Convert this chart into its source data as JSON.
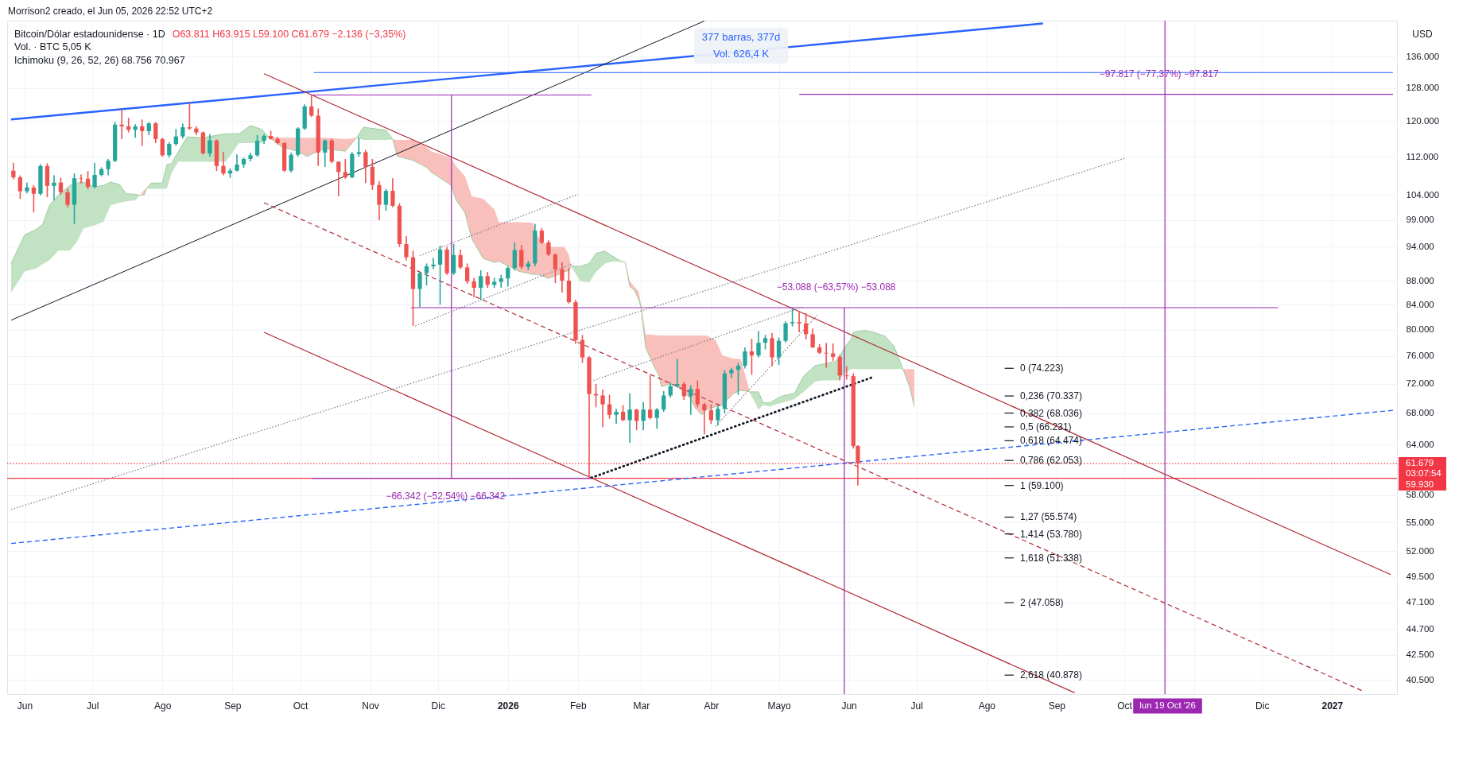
{
  "chart_data": {
    "type": "candlestick",
    "title": "Bitcoin/Dólar estadounidense · 1D",
    "ylabel": "USD",
    "x": [
      "2025-05-27",
      "2025-05-30",
      "2025-06-02",
      "2025-06-05",
      "2025-06-08",
      "2025-06-11",
      "2025-06-14",
      "2025-06-17",
      "2025-06-20",
      "2025-06-23",
      "2025-06-26",
      "2025-06-29",
      "2025-07-02",
      "2025-07-05",
      "2025-07-08",
      "2025-07-11",
      "2025-07-14",
      "2025-07-17",
      "2025-07-20",
      "2025-07-23",
      "2025-07-26",
      "2025-07-29",
      "2025-08-01",
      "2025-08-04",
      "2025-08-07",
      "2025-08-10",
      "2025-08-13",
      "2025-08-16",
      "2025-08-19",
      "2025-08-22",
      "2025-08-25",
      "2025-08-28",
      "2025-08-31",
      "2025-09-03",
      "2025-09-06",
      "2025-09-09",
      "2025-09-12",
      "2025-09-15",
      "2025-09-18",
      "2025-09-21",
      "2025-09-24",
      "2025-09-27",
      "2025-09-30",
      "2025-10-03",
      "2025-10-06",
      "2025-10-09",
      "2025-10-12",
      "2025-10-15",
      "2025-10-18",
      "2025-10-21",
      "2025-10-24",
      "2025-10-27",
      "2025-10-30",
      "2025-11-02",
      "2025-11-05",
      "2025-11-08",
      "2025-11-11",
      "2025-11-14",
      "2025-11-17",
      "2025-11-20",
      "2025-11-23",
      "2025-11-26",
      "2025-11-29",
      "2025-12-02",
      "2025-12-05",
      "2025-12-08",
      "2025-12-11",
      "2025-12-14",
      "2025-12-17",
      "2025-12-20",
      "2025-12-23",
      "2025-12-26",
      "2025-12-29",
      "2026-01-01",
      "2026-01-04",
      "2026-01-07",
      "2026-01-10",
      "2026-01-13",
      "2026-01-16",
      "2026-01-19",
      "2026-01-22",
      "2026-01-25",
      "2026-01-28",
      "2026-01-31",
      "2026-02-03",
      "2026-02-06",
      "2026-02-09",
      "2026-02-12",
      "2026-02-15",
      "2026-02-18",
      "2026-02-21",
      "2026-02-24",
      "2026-02-27",
      "2026-03-02",
      "2026-03-05",
      "2026-03-08",
      "2026-03-11",
      "2026-03-14",
      "2026-03-17",
      "2026-03-20",
      "2026-03-23",
      "2026-03-26",
      "2026-03-29",
      "2026-04-01",
      "2026-04-04",
      "2026-04-07",
      "2026-04-10",
      "2026-04-13",
      "2026-04-16",
      "2026-04-19",
      "2026-04-22",
      "2026-04-25",
      "2026-04-28",
      "2026-05-01",
      "2026-05-04",
      "2026-05-07",
      "2026-05-10",
      "2026-05-13",
      "2026-05-16",
      "2026-05-19",
      "2026-05-22",
      "2026-05-25",
      "2026-05-28",
      "2026-05-31",
      "2026-06-03",
      "2026-06-05"
    ],
    "ohlc": [
      [
        109000,
        110700,
        107200,
        107600
      ],
      [
        107600,
        108000,
        103200,
        104700
      ],
      [
        104700,
        106500,
        104300,
        105500
      ],
      [
        105500,
        106000,
        100500,
        104200
      ],
      [
        104200,
        110400,
        103900,
        110000
      ],
      [
        110000,
        110600,
        103500,
        105800
      ],
      [
        105800,
        108000,
        102900,
        106500
      ],
      [
        106500,
        107500,
        104000,
        104500
      ],
      [
        104500,
        105200,
        101500,
        102000
      ],
      [
        102000,
        108400,
        98300,
        107400
      ],
      [
        107400,
        108200,
        106300,
        107300
      ],
      [
        107300,
        108900,
        105100,
        105600
      ],
      [
        105600,
        110700,
        105300,
        108100
      ],
      [
        108100,
        109700,
        107800,
        109300
      ],
      [
        109300,
        111500,
        108000,
        111100
      ],
      [
        111100,
        119800,
        110800,
        119200
      ],
      [
        119200,
        122900,
        115900,
        118800
      ],
      [
        118800,
        120800,
        117400,
        118000
      ],
      [
        118000,
        119300,
        116200,
        118800
      ],
      [
        118800,
        120400,
        114400,
        117700
      ],
      [
        117700,
        119800,
        116800,
        119500
      ],
      [
        119500,
        119800,
        115000,
        115900
      ],
      [
        115900,
        116200,
        112000,
        112300
      ],
      [
        112300,
        115200,
        111800,
        114800
      ],
      [
        114800,
        118200,
        114400,
        116500
      ],
      [
        116500,
        119500,
        116000,
        118600
      ],
      [
        118600,
        124300,
        118000,
        118300
      ],
      [
        118300,
        118800,
        116800,
        117400
      ],
      [
        117400,
        117600,
        112500,
        112700
      ],
      [
        112700,
        117000,
        112000,
        115600
      ],
      [
        115600,
        115800,
        108900,
        110000
      ],
      [
        110000,
        113000,
        108000,
        108400
      ],
      [
        108400,
        109500,
        107500,
        109000
      ],
      [
        109000,
        112500,
        108800,
        110300
      ],
      [
        110300,
        111800,
        109600,
        111500
      ],
      [
        111500,
        112900,
        111000,
        112300
      ],
      [
        112300,
        116800,
        112000,
        115500
      ],
      [
        115500,
        117000,
        114800,
        116600
      ],
      [
        116600,
        117800,
        115800,
        115900
      ],
      [
        115900,
        116400,
        114700,
        115000
      ],
      [
        115000,
        115200,
        108700,
        109000
      ],
      [
        109000,
        112900,
        108600,
        112400
      ],
      [
        112400,
        118600,
        112000,
        118300
      ],
      [
        118300,
        124000,
        118000,
        123500
      ],
      [
        123500,
        126270,
        121000,
        121300
      ],
      [
        121300,
        123000,
        110000,
        112900
      ],
      [
        112900,
        115800,
        109800,
        115600
      ],
      [
        115600,
        116000,
        110600,
        110900
      ],
      [
        110900,
        111000,
        103700,
        108700
      ],
      [
        108700,
        111500,
        107300,
        107600
      ],
      [
        107600,
        113000,
        107400,
        112600
      ],
      [
        112600,
        116200,
        112000,
        113000
      ],
      [
        113000,
        113500,
        106400,
        109800
      ],
      [
        109800,
        111500,
        105000,
        106000
      ],
      [
        106000,
        106800,
        99000,
        102000
      ],
      [
        102000,
        105200,
        100800,
        104800
      ],
      [
        104800,
        107400,
        101500,
        101800
      ],
      [
        101800,
        102300,
        94000,
        94500
      ],
      [
        94500,
        96000,
        91500,
        92100
      ],
      [
        92100,
        93300,
        80600,
        86600
      ],
      [
        86600,
        89500,
        83600,
        89300
      ],
      [
        89300,
        91000,
        87200,
        90500
      ],
      [
        90500,
        92000,
        90000,
        90800
      ],
      [
        90800,
        94200,
        84000,
        93500
      ],
      [
        93500,
        94000,
        89000,
        89300
      ],
      [
        89300,
        94500,
        89000,
        92500
      ],
      [
        92500,
        93500,
        90000,
        90300
      ],
      [
        90300,
        91000,
        87500,
        87900
      ],
      [
        87900,
        88500,
        85200,
        86800
      ],
      [
        86800,
        89800,
        84800,
        88800
      ],
      [
        88800,
        89500,
        86800,
        87300
      ],
      [
        87300,
        88500,
        86800,
        87800
      ],
      [
        87800,
        89000,
        86800,
        88400
      ],
      [
        88400,
        90500,
        87000,
        90200
      ],
      [
        90200,
        94800,
        89800,
        93400
      ],
      [
        93400,
        94300,
        90000,
        90400
      ],
      [
        90400,
        91500,
        89800,
        91000
      ],
      [
        91000,
        98300,
        90500,
        97000
      ],
      [
        97000,
        97500,
        94500,
        94800
      ],
      [
        94800,
        95200,
        92300,
        92600
      ],
      [
        92600,
        92800,
        87600,
        90000
      ],
      [
        90000,
        91200,
        86000,
        88000
      ],
      [
        88000,
        90200,
        84200,
        84400
      ],
      [
        84400,
        84800,
        77800,
        78400
      ],
      [
        78400,
        79200,
        75000,
        75800
      ],
      [
        75800,
        76000,
        59930,
        70600
      ],
      [
        70600,
        72000,
        68800,
        70400
      ],
      [
        70400,
        71200,
        66200,
        69200
      ],
      [
        69200,
        70500,
        67300,
        67800
      ],
      [
        67800,
        68600,
        66600,
        68200
      ],
      [
        68200,
        69100,
        67000,
        67100
      ],
      [
        67100,
        70700,
        64200,
        68500
      ],
      [
        68500,
        68600,
        65800,
        67000
      ],
      [
        67000,
        69500,
        65800,
        68500
      ],
      [
        68500,
        73300,
        67200,
        67400
      ],
      [
        67400,
        68700,
        66000,
        68500
      ],
      [
        68500,
        71000,
        68200,
        70400
      ],
      [
        70400,
        72200,
        70100,
        71700
      ],
      [
        71700,
        75600,
        71500,
        72000
      ],
      [
        72000,
        72300,
        69800,
        70300
      ],
      [
        70300,
        71800,
        67800,
        71300
      ],
      [
        71300,
        72500,
        68800,
        69200
      ],
      [
        69200,
        69400,
        65300,
        68400
      ],
      [
        68400,
        69200,
        66600,
        67100
      ],
      [
        67100,
        69000,
        66400,
        68600
      ],
      [
        68600,
        74000,
        68000,
        73500
      ],
      [
        73500,
        74300,
        72800,
        74000
      ],
      [
        74000,
        75000,
        70500,
        74600
      ],
      [
        74600,
        77300,
        74200,
        76700
      ],
      [
        76700,
        78600,
        73300,
        76100
      ],
      [
        76100,
        79800,
        75800,
        78000
      ],
      [
        78000,
        79200,
        77000,
        78700
      ],
      [
        78700,
        79500,
        74500,
        75800
      ],
      [
        75800,
        78800,
        74700,
        78300
      ],
      [
        78300,
        81300,
        78000,
        81000
      ],
      [
        81000,
        83500,
        80500,
        81200
      ],
      [
        81200,
        83000,
        79600,
        81000
      ],
      [
        81000,
        82600,
        78500,
        79300
      ],
      [
        79300,
        80200,
        77200,
        77300
      ],
      [
        77300,
        77800,
        76300,
        76500
      ],
      [
        76500,
        78000,
        74300,
        76400
      ],
      [
        76400,
        77900,
        75300,
        75900
      ],
      [
        75900,
        76200,
        72500,
        73200
      ],
      [
        73200,
        74500,
        72600,
        73100
      ],
      [
        73100,
        73500,
        63500,
        63800
      ],
      [
        63811,
        63915,
        59100,
        61679
      ]
    ],
    "colors": [
      "#ef5350",
      "#ef5350",
      "#26a69a",
      "#ef5350",
      "#26a69a",
      "#ef5350",
      "#26a69a",
      "#ef5350",
      "#ef5350",
      "#26a69a",
      "#ef5350",
      "#ef5350",
      "#26a69a",
      "#26a69a",
      "#26a69a",
      "#26a69a",
      "#ef5350",
      "#ef5350",
      "#26a69a",
      "#ef5350",
      "#26a69a",
      "#ef5350",
      "#ef5350",
      "#26a69a",
      "#26a69a",
      "#26a69a",
      "#ef5350",
      "#ef5350",
      "#ef5350",
      "#26a69a",
      "#ef5350",
      "#ef5350",
      "#26a69a",
      "#26a69a",
      "#26a69a",
      "#26a69a",
      "#26a69a",
      "#26a69a",
      "#ef5350",
      "#ef5350",
      "#ef5350",
      "#26a69a",
      "#26a69a",
      "#26a69a",
      "#ef5350",
      "#ef5350",
      "#26a69a",
      "#ef5350",
      "#ef5350",
      "#ef5350",
      "#26a69a",
      "#26a69a",
      "#ef5350",
      "#ef5350",
      "#ef5350",
      "#26a69a",
      "#ef5350",
      "#ef5350",
      "#ef5350",
      "#ef5350",
      "#26a69a",
      "#26a69a",
      "#26a69a",
      "#26a69a",
      "#ef5350",
      "#26a69a",
      "#ef5350",
      "#ef5350",
      "#ef5350",
      "#26a69a",
      "#ef5350",
      "#26a69a",
      "#26a69a",
      "#26a69a",
      "#26a69a",
      "#ef5350",
      "#26a69a",
      "#26a69a",
      "#ef5350",
      "#ef5350",
      "#ef5350",
      "#ef5350",
      "#ef5350",
      "#ef5350",
      "#ef5350",
      "#ef5350",
      "#ef5350",
      "#ef5350",
      "#ef5350",
      "#26a69a",
      "#ef5350",
      "#26a69a",
      "#ef5350",
      "#26a69a",
      "#ef5350",
      "#26a69a",
      "#26a69a",
      "#26a69a",
      "#26a69a",
      "#ef5350",
      "#26a69a",
      "#ef5350",
      "#ef5350",
      "#ef5350",
      "#26a69a",
      "#26a69a",
      "#26a69a",
      "#26a69a",
      "#26a69a",
      "#ef5350",
      "#26a69a",
      "#26a69a",
      "#ef5350",
      "#26a69a",
      "#26a69a",
      "#26a69a",
      "#ef5350",
      "#ef5350",
      "#ef5350",
      "#ef5350",
      "#ef5350",
      "#ef5350",
      "#ef5350",
      "#ef5350",
      "#ef5350",
      "#ef5350"
    ],
    "series": [
      {
        "type": "line",
        "color": "#9ccc9e",
        "x": [
          "2025-05-26",
          "2025-06-01",
          "2025-06-06",
          "2025-06-09",
          "2025-06-12",
          "2025-06-16",
          "2025-06-21",
          "2025-06-24",
          "2025-06-27",
          "2025-07-02",
          "2025-07-06",
          "2025-07-09",
          "2025-07-13",
          "2025-07-16",
          "2025-07-20",
          "2025-07-22",
          "2025-07-24",
          "2025-07-25",
          "2025-07-27",
          "2025-08-01",
          "2025-08-03",
          "2025-08-05",
          "2025-08-08",
          "2025-08-12",
          "2025-08-19",
          "2025-08-29",
          "2025-09-04",
          "2025-09-09",
          "2025-09-14",
          "2025-09-17",
          "2025-09-23",
          "2025-09-30",
          "2025-10-04",
          "2025-10-12",
          "2025-10-21",
          "2025-10-26",
          "2025-10-29",
          "2025-11-08",
          "2025-11-11",
          "2025-11-13",
          "2025-11-20",
          "2025-11-26",
          "2025-11-28",
          "2025-12-07",
          "2025-12-09",
          "2025-12-13",
          "2025-12-16",
          "2025-12-21",
          "2025-12-26",
          "2025-12-28",
          "2026-01-06",
          "2026-01-12",
          "2026-01-14",
          "2026-01-19",
          "2026-01-26",
          "2026-01-28",
          "2026-01-29",
          "2026-02-02",
          "2026-02-06",
          "2026-02-09",
          "2026-02-13",
          "2026-02-16",
          "2026-02-20",
          "2026-02-22",
          "2026-02-24",
          "2026-02-26",
          "2026-02-28",
          "2026-03-01",
          "2026-03-03",
          "2026-03-06",
          "2026-03-09",
          "2026-03-10",
          "2026-03-14",
          "2026-03-17",
          "2026-03-21",
          "2026-03-23",
          "2026-03-25",
          "2026-03-28",
          "2026-03-30",
          "2026-04-03",
          "2026-04-06",
          "2026-04-11",
          "2026-04-14",
          "2026-04-17",
          "2026-04-18",
          "2026-04-22",
          "2026-04-24",
          "2026-04-27",
          "2026-05-02",
          "2026-05-08",
          "2026-05-12",
          "2026-05-17",
          "2026-05-20",
          "2026-05-26",
          "2026-05-28",
          "2026-05-30",
          "2026-06-02",
          "2026-06-03",
          "2026-06-08",
          "2026-06-12",
          "2026-06-17",
          "2026-06-21",
          "2026-06-25",
          "2026-06-28",
          "2026-06-30"
        ],
        "values": [
          91000,
          96200,
          97200,
          98200,
          101900,
          104000,
          105900,
          106400,
          106600,
          105600,
          105900,
          106600,
          106100,
          104200,
          104100,
          103900,
          104000,
          105300,
          106400,
          106400,
          110300,
          110500,
          113100,
          116400,
          116200,
          117100,
          117100,
          119000,
          118100,
          116400,
          114100,
          113200,
          112100,
          113800,
          113200,
          116200,
          118600,
          117900,
          115800,
          112100,
          111200,
          109700,
          108700,
          105900,
          103000,
          100400,
          95500,
          91900,
          91200,
          91400,
          89600,
          89100,
          89100,
          88400,
          89500,
          89800,
          90500,
          90500,
          91000,
          92800,
          93200,
          92400,
          91400,
          91200,
          87000,
          86400,
          84800,
          83500,
          77300,
          75000,
          73100,
          71600,
          72000,
          71600,
          70600,
          69900,
          68700,
          67800,
          68500,
          68900,
          69100,
          70700,
          71100,
          71000,
          70900,
          70900,
          69400,
          69400,
          70300,
          70700,
          73100,
          74600,
          74800,
          75200,
          75900,
          77300,
          78500,
          79600,
          79900,
          79600,
          79000,
          77500,
          74100,
          71500,
          68900
        ],
        "lower": [
          86000,
          89600,
          90100,
          90900,
          91600,
          93300,
          93300,
          94800,
          97400,
          98000,
          98700,
          101900,
          102400,
          102700,
          102900,
          103900,
          104000,
          105300,
          105200,
          105200,
          105300,
          108400,
          110900,
          110900,
          110900,
          110900,
          115000,
          115000,
          115000,
          116400,
          114100,
          113200,
          112100,
          113800,
          113200,
          116200,
          115700,
          115700,
          115800,
          112100,
          111200,
          109700,
          108700,
          105900,
          103000,
          100400,
          95500,
          91900,
          91200,
          91400,
          89600,
          89100,
          89100,
          88400,
          89500,
          89800,
          90500,
          87900,
          87700,
          89500,
          91000,
          91300,
          91300,
          91200,
          87000,
          86400,
          84800,
          83500,
          77300,
          75000,
          73100,
          71600,
          72000,
          71600,
          70600,
          69900,
          68700,
          67800,
          68500,
          68900,
          69100,
          70700,
          71100,
          71000,
          70900,
          68500,
          69100,
          68900,
          69400,
          69900,
          70900,
          72300,
          72500,
          72500,
          72500,
          73500,
          74100,
          74100,
          74100,
          74100,
          74100,
          74100,
          74100,
          71500,
          68900
        ],
        "upper": [
          91000,
          96200,
          97200,
          98200,
          101900,
          104000,
          105900,
          106400,
          106600,
          105600,
          105900,
          106600,
          106100,
          104200,
          104100,
          103900,
          105000,
          105300,
          106400,
          106400,
          110300,
          110500,
          113100,
          116400,
          116200,
          117100,
          117100,
          119000,
          118100,
          116400,
          116200,
          116200,
          116200,
          116200,
          115900,
          116200,
          118600,
          117900,
          115800,
          115700,
          115700,
          114100,
          113200,
          111700,
          110000,
          107800,
          103700,
          103200,
          101100,
          98600,
          98600,
          98500,
          96000,
          94000,
          94000,
          92600,
          90500,
          90500,
          91000,
          92800,
          93200,
          92400,
          91400,
          91200,
          87900,
          87000,
          86100,
          84000,
          79300,
          79200,
          79100,
          79100,
          79100,
          79100,
          79100,
          79100,
          79100,
          79100,
          79100,
          78400,
          76100,
          75600,
          75600,
          72300,
          70900,
          70900,
          69400,
          69400,
          70300,
          70700,
          73100,
          74600,
          74800,
          75200,
          75900,
          77300,
          78500,
          79600,
          79900,
          79600,
          79000,
          77500,
          74100,
          74100,
          74100
        ],
        "colors": [
          "#c2e3c3",
          "#c2e3c3",
          "#c2e3c3",
          "#c2e3c3",
          "#c2e3c3",
          "#c2e3c3",
          "#c2e3c3",
          "#c2e3c3",
          "#c2e3c3",
          "#c2e3c3",
          "#c2e3c3",
          "#c2e3c3",
          "#c2e3c3",
          "#c2e3c3",
          "#c2e3c3",
          "#f9c0bb",
          "#f9c0bb",
          "#c2e3c3",
          "#c2e3c3",
          "#c2e3c3",
          "#c2e3c3",
          "#c2e3c3",
          "#c2e3c3",
          "#c2e3c3",
          "#c2e3c3",
          "#c2e3c3",
          "#c2e3c3",
          "#c2e3c3",
          "#c2e3c3",
          "#f9c0bb",
          "#f9c0bb",
          "#f9c0bb",
          "#f9c0bb",
          "#f9c0bb",
          "#f9c0bb",
          "#c2e3c3",
          "#c2e3c3",
          "#c2e3c3",
          "#f9c0bb",
          "#f9c0bb",
          "#f9c0bb",
          "#f9c0bb",
          "#f9c0bb",
          "#f9c0bb",
          "#f9c0bb",
          "#f9c0bb",
          "#f9c0bb",
          "#f9c0bb",
          "#f9c0bb",
          "#f9c0bb",
          "#f9c0bb",
          "#f9c0bb",
          "#f9c0bb",
          "#f9c0bb",
          "#f9c0bb",
          "#f9c0bb",
          "#c2e3c3",
          "#c2e3c3",
          "#c2e3c3",
          "#c2e3c3",
          "#c2e3c3",
          "#c2e3c3",
          "#c2e3c3",
          "#f9c0bb",
          "#f9c0bb",
          "#f9c0bb",
          "#f9c0bb",
          "#f9c0bb",
          "#f9c0bb",
          "#f9c0bb",
          "#f9c0bb",
          "#f9c0bb",
          "#f9c0bb",
          "#f9c0bb",
          "#f9c0bb",
          "#f9c0bb",
          "#f9c0bb",
          "#f9c0bb",
          "#f9c0bb",
          "#f9c0bb",
          "#f9c0bb",
          "#f9c0bb",
          "#f9c0bb",
          "#f9c0bb",
          "#c2e3c3",
          "#c2e3c3",
          "#c2e3c3",
          "#c2e3c3",
          "#c2e3c3",
          "#c2e3c3",
          "#c2e3c3",
          "#c2e3c3",
          "#c2e3c3",
          "#c2e3c3",
          "#c2e3c3",
          "#c2e3c3",
          "#c2e3c3",
          "#c2e3c3",
          "#c2e3c3",
          "#c2e3c3",
          "#c2e3c3",
          "#c2e3c3",
          "#f9c0bb",
          "#f9c0bb",
          "#f9c0bb"
        ]
      },
      {
        "type": "line",
        "color": "#2962ff",
        "x": [
          "2025-05-26",
          "2026-08-26"
        ],
        "values": [
          120400,
          145100
        ]
      },
      {
        "type": "line",
        "color": "#131722",
        "x": [
          "2025-05-26",
          "2026-03-29"
        ],
        "values": [
          81500,
          145800
        ]
      },
      {
        "type": "line",
        "color": "#b22833",
        "x": [
          "2025-09-15",
          "2027-01-27"
        ],
        "values": [
          131600,
          49700
        ]
      },
      {
        "type": "line",
        "color": "#b22833",
        "line_style": "dashed",
        "x": [
          "2025-09-15",
          "2027-01-15"
        ],
        "values": [
          102400,
          39600
        ]
      },
      {
        "type": "line",
        "color": "#b22833",
        "x": [
          "2025-09-15",
          "2026-09-09"
        ],
        "values": [
          79600,
          39500
        ]
      },
      {
        "type": "line",
        "color": "#2962ff",
        "line_style": "dashed",
        "x": [
          "2025-05-26",
          "2027-01-28"
        ],
        "values": [
          52800,
          68400
        ]
      },
      {
        "type": "line",
        "color": "#787b86",
        "line_style": "dotted",
        "x": [
          "2025-05-26",
          "2026-10-01"
        ],
        "values": [
          56400,
          111600
        ]
      },
      {
        "type": "line",
        "color": "#787b86",
        "line_style": "dotted",
        "x": [
          "2025-11-23",
          "2026-02-01"
        ],
        "values": [
          92400,
          104100
        ]
      },
      {
        "type": "line",
        "color": "#787b86",
        "line_style": "dotted",
        "x": [
          "2025-11-21",
          "2026-01-30"
        ],
        "values": [
          80600,
          91000
        ]
      },
      {
        "type": "line",
        "color": "#787b86",
        "line_style": "dotted",
        "x": [
          "2026-02-08",
          "2026-05-12"
        ],
        "values": [
          72500,
          83700
        ]
      },
      {
        "type": "line",
        "color": "#787b86",
        "line_style": "dotted",
        "x": [
          "2026-04-03",
          "2026-05-18"
        ],
        "values": [
          66300,
          82300
        ]
      },
      {
        "type": "line",
        "color": "#131722",
        "line_style": "dotted",
        "x": [
          "2026-02-07",
          "2026-06-12"
        ],
        "values": [
          60000,
          73000
        ]
      },
      {
        "type": "line",
        "color": "#2962ff",
        "x": [
          "2025-10-07",
          "2027-01-28"
        ],
        "values": [
          131900,
          131900
        ]
      },
      {
        "type": "line",
        "color": "#9c27b0",
        "x": [
          "2025-10-06",
          "2026-02-07"
        ],
        "values": [
          126270,
          126270
        ]
      },
      {
        "type": "line",
        "color": "#9c27b0",
        "x": [
          "2025-10-06",
          "2026-02-07"
        ],
        "values": [
          59930,
          59930
        ]
      },
      {
        "type": "line",
        "color": "#9c27b0",
        "x": [
          "2025-12-07",
          "2025-12-07"
        ],
        "values": [
          126270,
          59930
        ]
      },
      {
        "type": "line",
        "color": "#9c27b0",
        "x": [
          "2025-11-19",
          "2026-12-08"
        ],
        "values": [
          83511,
          83511
        ]
      },
      {
        "type": "line",
        "color": "#9c27b0",
        "x": [
          "2026-05-30",
          "2026-05-30"
        ],
        "values": [
          83511,
          39400
        ]
      },
      {
        "type": "line",
        "color": "#9c27b0",
        "x": [
          "2026-05-10",
          "2027-01-28"
        ],
        "values": [
          126430,
          126430
        ]
      },
      {
        "type": "line",
        "color": "#131722",
        "x": [
          "2026-08-09",
          "2026-08-13"
        ],
        "values": [
          74223,
          74223
        ]
      },
      {
        "type": "line",
        "color": "#131722",
        "x": [
          "2026-08-09",
          "2026-08-13"
        ],
        "values": [
          70337,
          70337
        ]
      },
      {
        "type": "line",
        "color": "#131722",
        "x": [
          "2026-08-09",
          "2026-08-13"
        ],
        "values": [
          68036,
          68036
        ]
      },
      {
        "type": "line",
        "color": "#131722",
        "x": [
          "2026-08-09",
          "2026-08-13"
        ],
        "values": [
          66231,
          66231
        ]
      },
      {
        "type": "line",
        "color": "#131722",
        "x": [
          "2026-08-09",
          "2026-08-13"
        ],
        "values": [
          64474,
          64474
        ]
      },
      {
        "type": "line",
        "color": "#131722",
        "x": [
          "2026-08-09",
          "2026-08-13"
        ],
        "values": [
          62053,
          62053
        ]
      },
      {
        "type": "line",
        "color": "#131722",
        "x": [
          "2026-08-09",
          "2026-08-13"
        ],
        "values": [
          59100,
          59100
        ]
      },
      {
        "type": "line",
        "color": "#131722",
        "x": [
          "2026-08-09",
          "2026-08-13"
        ],
        "values": [
          55574,
          55574
        ]
      },
      {
        "type": "line",
        "color": "#131722",
        "x": [
          "2026-08-09",
          "2026-08-13"
        ],
        "values": [
          53780,
          53780
        ]
      },
      {
        "type": "line",
        "color": "#131722",
        "x": [
          "2026-08-09",
          "2026-08-13"
        ],
        "values": [
          51338,
          51338
        ]
      },
      {
        "type": "line",
        "color": "#131722",
        "x": [
          "2026-08-09",
          "2026-08-13"
        ],
        "values": [
          47058,
          47058
        ]
      },
      {
        "type": "line",
        "color": "#131722",
        "x": [
          "2026-08-09",
          "2026-08-13"
        ],
        "values": [
          40878,
          40878
        ]
      }
    ],
    "xlim": [
      "2025-05-26",
      "2027-01-28"
    ],
    "ylim": [
      39400,
      145900
    ],
    "log": true,
    "grid": true,
    "xticks": [
      {
        "value": "2025-06-01",
        "label": "Jun"
      },
      {
        "value": "2025-07-01",
        "label": "Jul"
      },
      {
        "value": "2025-08-01",
        "label": "Ago"
      },
      {
        "value": "2025-09-01",
        "label": "Sep"
      },
      {
        "value": "2025-10-01",
        "label": "Oct"
      },
      {
        "value": "2025-11-01",
        "label": "Nov"
      },
      {
        "value": "2025-12-01",
        "label": "Dic"
      },
      {
        "value": "2026-01-01",
        "label": "2026"
      },
      {
        "value": "2026-02-01",
        "label": "Feb"
      },
      {
        "value": "2026-03-01",
        "label": "Mar"
      },
      {
        "value": "2026-04-01",
        "label": "Abr"
      },
      {
        "value": "2026-05-01",
        "label": "Mayo"
      },
      {
        "value": "2026-06-01",
        "label": "Jun"
      },
      {
        "value": "2026-07-01",
        "label": "Jul"
      },
      {
        "value": "2026-08-01",
        "label": "Ago"
      },
      {
        "value": "2026-09-01",
        "label": "Sep"
      },
      {
        "value": "2026-10-01",
        "label": "Oct"
      },
      {
        "value": "2026-11-01",
        "label": null
      },
      {
        "value": "2026-12-01",
        "label": "Dic"
      },
      {
        "value": "2027-01-01",
        "label": "2027"
      }
    ],
    "yticks": [
      {
        "value": 136000,
        "label": "136.000"
      },
      {
        "value": 128000,
        "label": "128.000"
      },
      {
        "value": 120000,
        "label": "120.000"
      },
      {
        "value": 112000,
        "label": "112.000"
      },
      {
        "value": 104000,
        "label": "104.000"
      },
      {
        "value": 99000,
        "label": "99.000"
      },
      {
        "value": 94000,
        "label": "94.000"
      },
      {
        "value": 88000,
        "label": "88.000"
      },
      {
        "value": 84000,
        "label": "84.000"
      },
      {
        "value": 80000,
        "label": "80.000"
      },
      {
        "value": 76000,
        "label": "76.000"
      },
      {
        "value": 72000,
        "label": "72.000"
      },
      {
        "value": 68000,
        "label": "68.000"
      },
      {
        "value": 64000,
        "label": "64.000"
      },
      {
        "value": 58000,
        "label": "58.000"
      },
      {
        "value": 55000,
        "label": "55.000"
      },
      {
        "value": 52000,
        "label": "52.000"
      },
      {
        "value": 49500,
        "label": "49.500"
      },
      {
        "value": 47100,
        "label": "47.100"
      },
      {
        "value": 44700,
        "label": "44.700"
      },
      {
        "value": 42500,
        "label": "42.500"
      },
      {
        "value": 40500,
        "label": "40.500"
      }
    ],
    "ref_lines": [
      {
        "axis": "y",
        "value": 61679,
        "label": "61.679",
        "color": "#f23645",
        "line_style": "dotted"
      },
      {
        "axis": "y",
        "value": 59930,
        "label": "59.930",
        "color": "#f23645"
      },
      {
        "axis": "x",
        "value": "2026-10-19",
        "label": "lun 19 Oct '26",
        "color": "#9c27b0"
      }
    ],
    "annotations": [
      "Morrison2 creado, el Jun 05, 2026 22:52 UTC+2",
      "O63.811 H63.915 L59.100 C61.679 −2.136 (−3,35%)",
      "Vol. · BTC 5,05 K",
      "Ichimoku (9, 26, 52, 26) 68.756 70.967",
      "03:07:54",
      "377 barras, 377d",
      "Vol. 626,4 K",
      {
        "text": "−97.817 (−77,37%) −97.817",
        "x": "2026-09-20",
        "y": 131900
      },
      {
        "text": "−53.088 (−63,57%) −53.088",
        "x": "2026-04-30",
        "y": 83511
      },
      {
        "text": "−66.342 (−52,54%) −66.342",
        "x": "2025-11-08",
        "y": 59930
      },
      {
        "text": "0 (74.223)",
        "x": "2026-08-13",
        "y": 74223
      },
      {
        "text": "0,236 (70.337)",
        "x": "2026-08-13",
        "y": 70337
      },
      {
        "text": "0,382 (68.036)",
        "x": "2026-08-13",
        "y": 68036
      },
      {
        "text": "0,5 (66.231)",
        "x": "2026-08-13",
        "y": 66231
      },
      {
        "text": "0,618 (64.474)",
        "x": "2026-08-13",
        "y": 64474
      },
      {
        "text": "0,786 (62.053)",
        "x": "2026-08-13",
        "y": 62053
      },
      {
        "text": "1 (59.100)",
        "x": "2026-08-13",
        "y": 59100
      },
      {
        "text": "1,27 (55.574)",
        "x": "2026-08-13",
        "y": 55574
      },
      {
        "text": "1,414 (53.780)",
        "x": "2026-08-13",
        "y": 53780
      },
      {
        "text": "1,618 (51.338)",
        "x": "2026-08-13",
        "y": 51338
      },
      {
        "text": "2 (47.058)",
        "x": "2026-08-13",
        "y": 47058
      },
      {
        "text": "2,618 (40.878)",
        "x": "2026-08-13",
        "y": 40878
      }
    ]
  }
}
